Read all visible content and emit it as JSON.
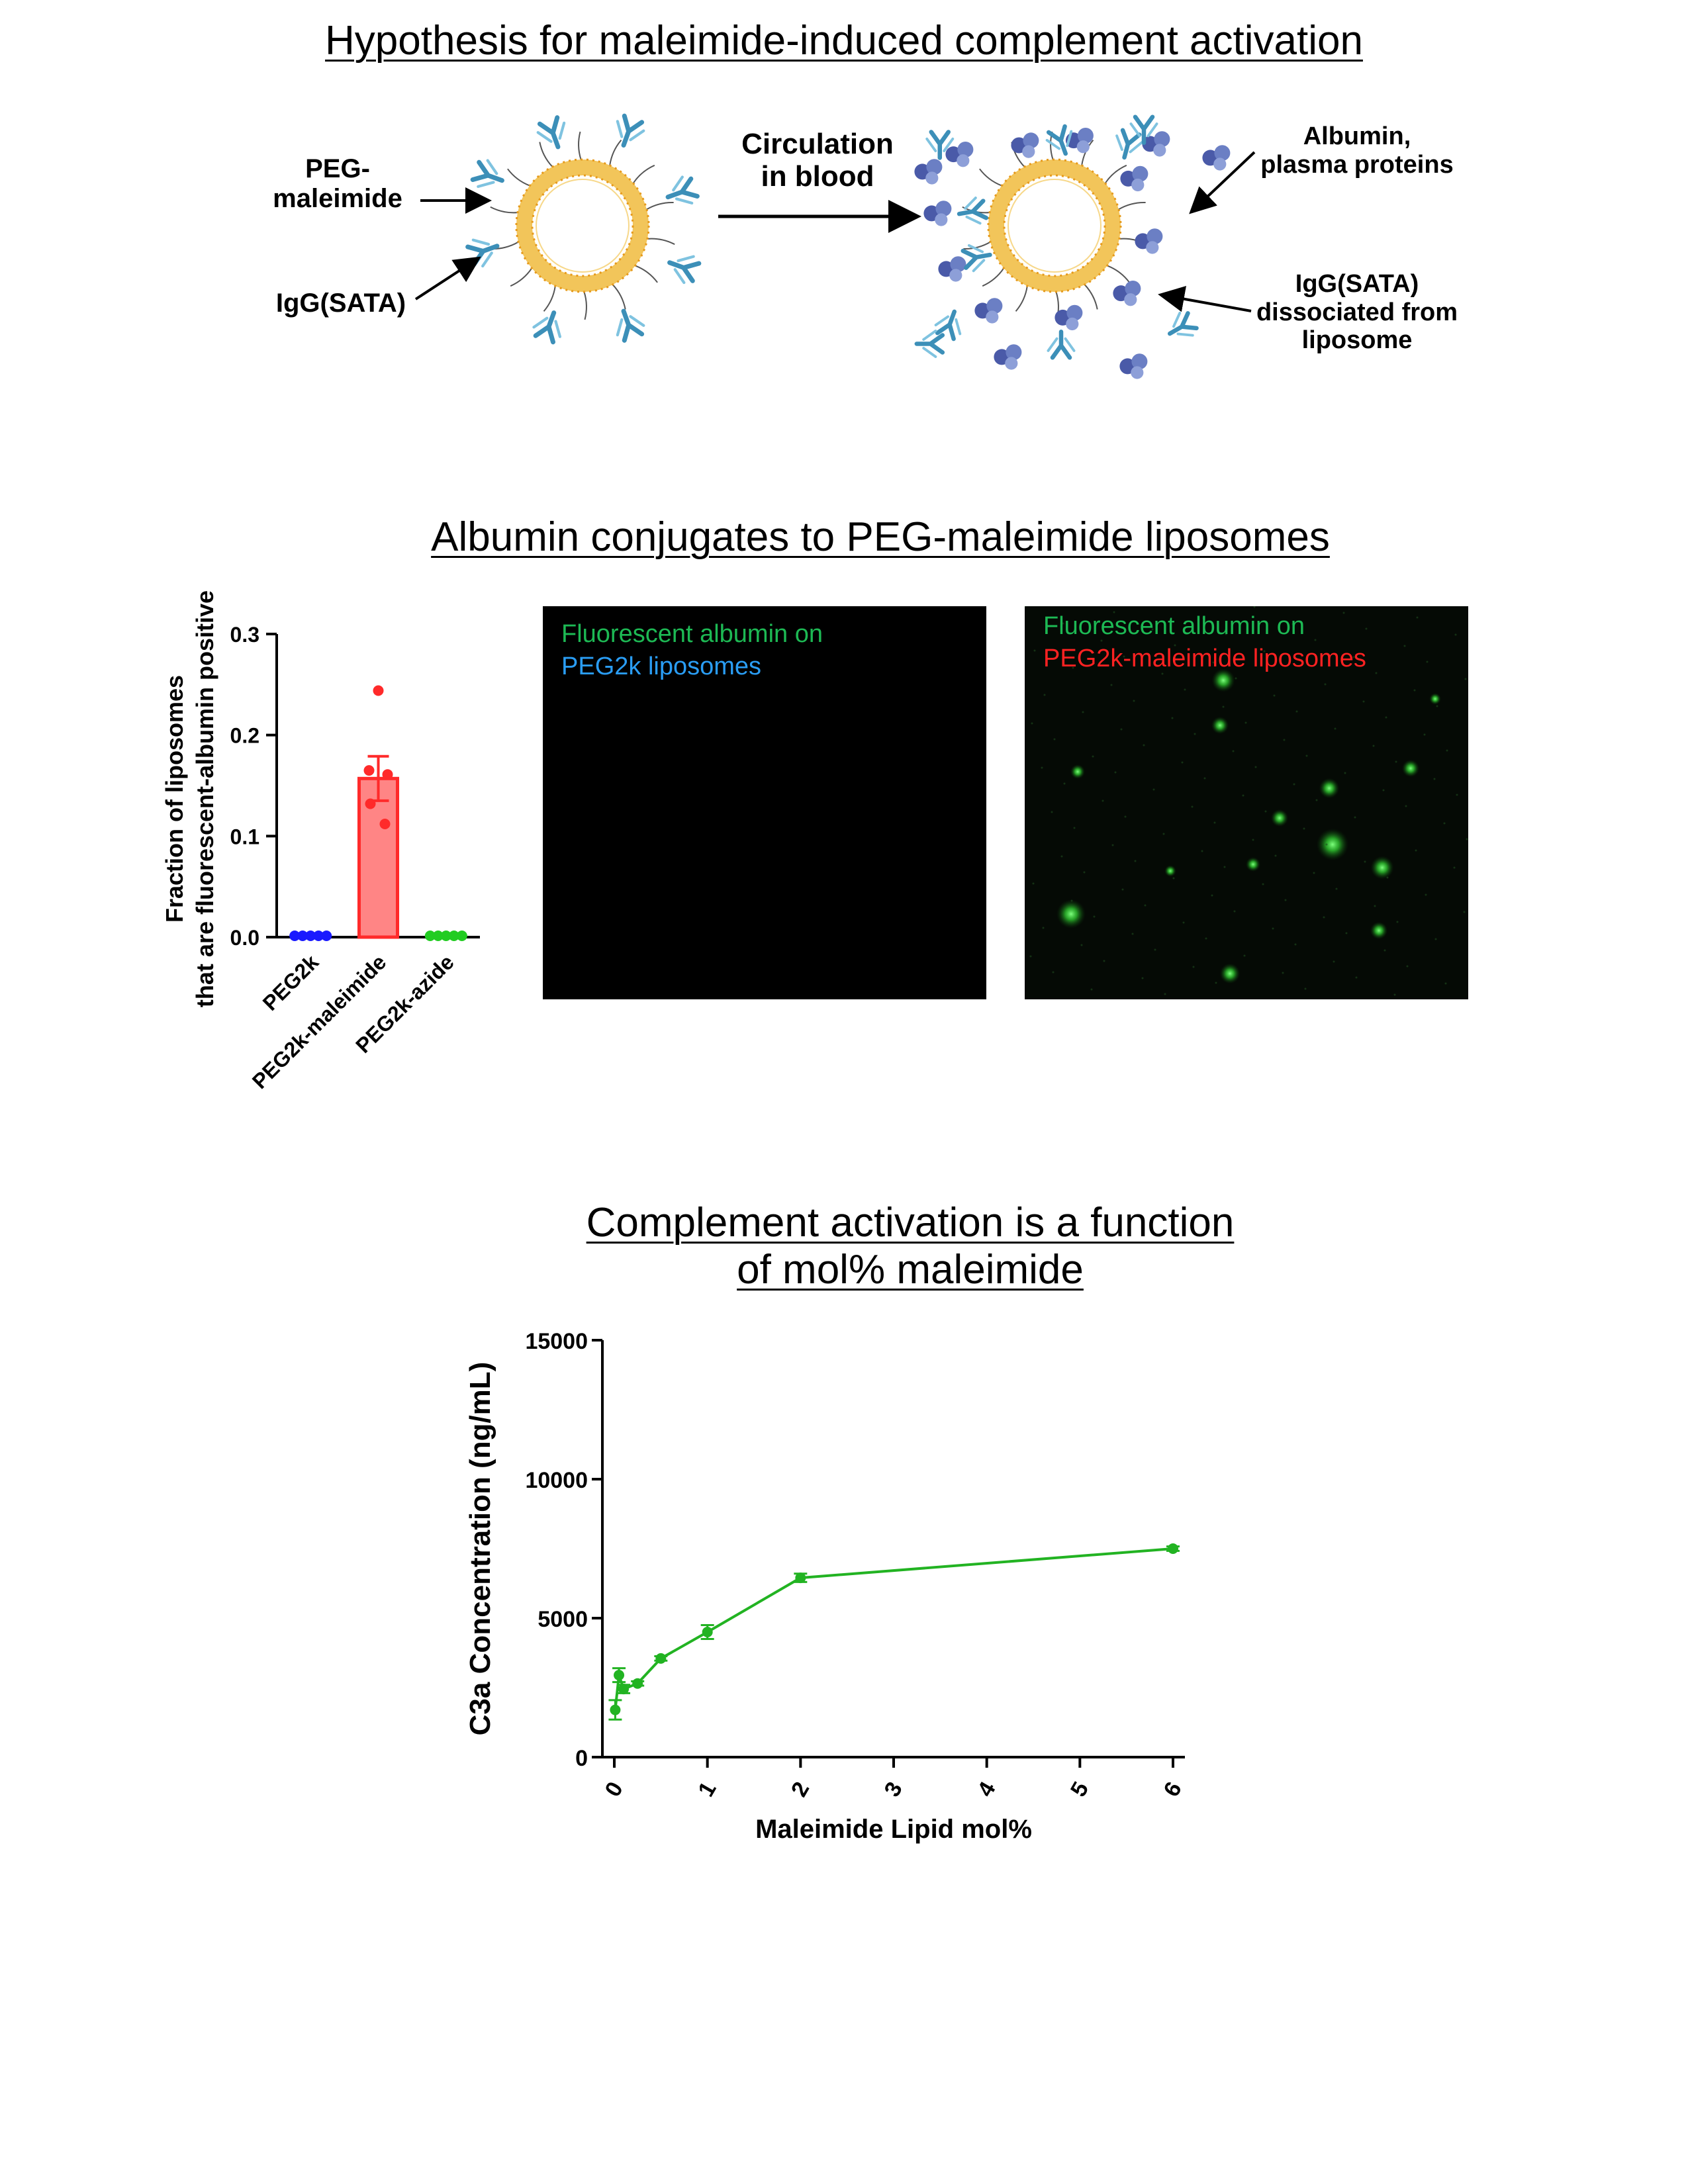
{
  "hypothesis": {
    "title": "Hypothesis for maleimide-induced complement activation",
    "label_peg": "PEG-\nmaleimide",
    "label_igg": "IgG(SATA)",
    "label_circulation": "Circulation\nin blood",
    "label_albumin": "Albumin,\nplasma proteins",
    "label_dissociated": "IgG(SATA)\ndissociated from\nliposome",
    "colors": {
      "liposome_shell": "#f2c55a",
      "liposome_edge": "#e69a1c",
      "antibody": "#3c8fb8",
      "protein": "#5a6bb0"
    }
  },
  "albumin": {
    "title": "Albumin conjugates to PEG-maleimide liposomes",
    "image_left": {
      "line1": "Fluorescent albumin on",
      "line2": "PEG2k liposomes",
      "line1_color": "#1db954",
      "line2_color": "#2a9df4"
    },
    "image_right": {
      "line1": "Fluorescent albumin on",
      "line2": "PEG2k-maleimide liposomes",
      "line1_color": "#1db954",
      "line2_color": "#ff2222"
    }
  },
  "complement": {
    "title_line1": "Complement activation is a function",
    "title_line2": "of mol% maleimide"
  },
  "chart_data": [
    {
      "type": "bar",
      "ylabel": "Fraction of liposomes\nthat are fluorescent-albumin positive",
      "categories": [
        "PEG2k",
        "PEG2k-maleimide",
        "PEG2k-azide"
      ],
      "values": [
        0.0,
        0.157,
        0.0
      ],
      "error": [
        0.0,
        0.022,
        0.0
      ],
      "points": [
        [
          0,
          0,
          0,
          0,
          0
        ],
        [
          0.244,
          0.165,
          0.161,
          0.132,
          0.112
        ],
        [
          0,
          0,
          0,
          0,
          0
        ]
      ],
      "colors": [
        "#1a1aff",
        "#ff2a2a",
        "#22cc22"
      ],
      "bar_fill": "#ff8585",
      "ylim": [
        0,
        0.3
      ],
      "yticks": [
        "0.0",
        "0.1",
        "0.2",
        "0.3"
      ]
    },
    {
      "type": "line",
      "xlabel": "Maleimide Lipid mol%",
      "ylabel": "C3a Concentration (ng/mL)",
      "x": [
        0.01,
        0.05,
        0.1,
        0.25,
        0.5,
        1,
        2,
        6
      ],
      "y": [
        1700,
        2950,
        2450,
        2650,
        3550,
        4500,
        6450,
        7500
      ],
      "error": [
        350,
        250,
        150,
        80,
        80,
        250,
        150,
        80
      ],
      "color": "#22b322",
      "xlim": [
        0,
        6
      ],
      "ylim": [
        0,
        15000
      ],
      "xticks": [
        "0",
        "1",
        "2",
        "3",
        "4",
        "5",
        "6"
      ],
      "yticks": [
        "0",
        "5000",
        "10000",
        "15000"
      ]
    }
  ]
}
